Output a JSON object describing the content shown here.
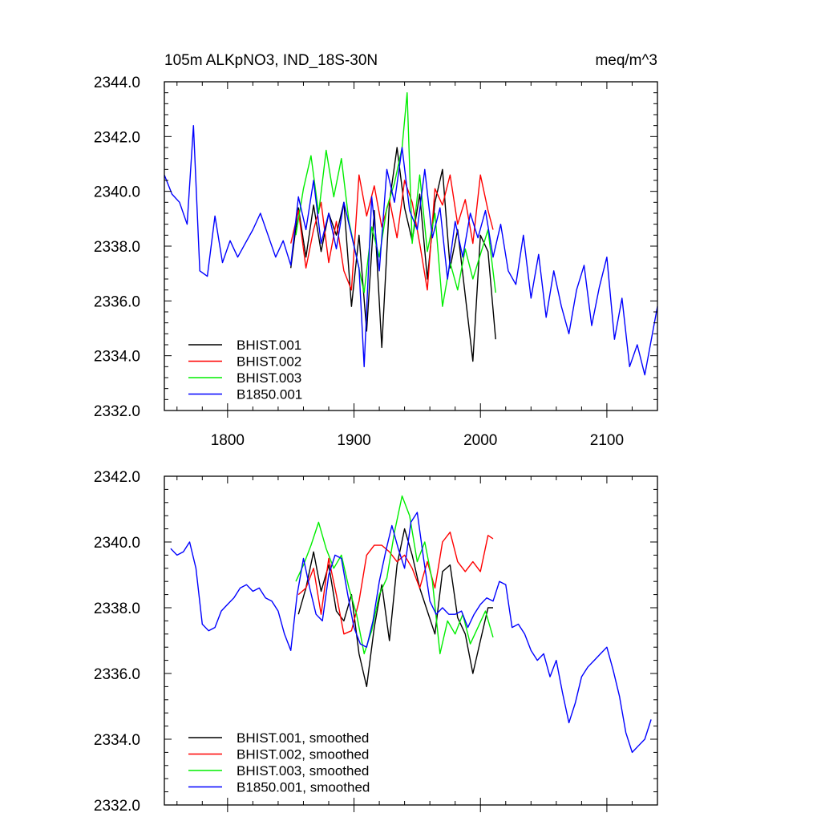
{
  "chart_data": [
    {
      "type": "line",
      "title": "105m ALKpNO3, IND_18S-30N",
      "units": "meq/m^3",
      "xlim": [
        1750,
        2140
      ],
      "ylim": [
        2332,
        2344
      ],
      "x_ticks": [
        1800,
        1900,
        2000,
        2100
      ],
      "x_tick_labels": [
        "1800",
        "1900",
        "2000",
        "2100"
      ],
      "y_ticks": [
        2332,
        2334,
        2336,
        2338,
        2340,
        2342,
        2344
      ],
      "y_tick_labels": [
        "2332.0",
        "2334.0",
        "2336.0",
        "2338.0",
        "2340.0",
        "2342.0",
        "2344.0"
      ],
      "legend_position": "bottom-left",
      "series": [
        {
          "name": "BHIST.001",
          "color": "#000000",
          "x": [
            1850,
            1856,
            1862,
            1868,
            1874,
            1880,
            1886,
            1892,
            1898,
            1904,
            1910,
            1916,
            1922,
            1928,
            1934,
            1940,
            1946,
            1952,
            1958,
            1964,
            1970,
            1976,
            1982,
            1988,
            1994,
            2000,
            2006,
            2012
          ],
          "y": [
            2337.2,
            2339.4,
            2337.6,
            2339.5,
            2337.8,
            2339.2,
            2338.4,
            2339.6,
            2335.8,
            2338.4,
            2334.9,
            2339.3,
            2334.3,
            2339.6,
            2341.6,
            2339.4,
            2338.2,
            2339.9,
            2336.8,
            2339.6,
            2340.8,
            2337.2,
            2338.6,
            2336.2,
            2333.8,
            2338.4,
            2337.8,
            2334.6
          ]
        },
        {
          "name": "BHIST.002",
          "color": "#ff0000",
          "x": [
            1850,
            1856,
            1862,
            1868,
            1874,
            1880,
            1886,
            1892,
            1898,
            1904,
            1910,
            1916,
            1922,
            1928,
            1934,
            1940,
            1946,
            1952,
            1958,
            1964,
            1970,
            1976,
            1982,
            1988,
            1994,
            2000,
            2006,
            2010
          ],
          "y": [
            2338.1,
            2339.3,
            2337.2,
            2338.6,
            2339.6,
            2337.4,
            2338.9,
            2337.1,
            2336.4,
            2340.6,
            2339.1,
            2340.2,
            2338.7,
            2339.7,
            2338.3,
            2340.4,
            2339.6,
            2338.1,
            2336.4,
            2340.1,
            2339.5,
            2340.6,
            2338.8,
            2339.7,
            2338.1,
            2340.6,
            2339.3,
            2338.6
          ]
        },
        {
          "name": "BHIST.003",
          "color": "#00ee00",
          "x": [
            1854,
            1860,
            1866,
            1872,
            1878,
            1884,
            1890,
            1896,
            1902,
            1908,
            1914,
            1920,
            1926,
            1932,
            1938,
            1942,
            1946,
            1952,
            1958,
            1964,
            1970,
            1976,
            1982,
            1988,
            1994,
            2000,
            2006,
            2012
          ],
          "y": [
            2338.4,
            2340.1,
            2341.3,
            2339.2,
            2341.5,
            2339.8,
            2341.2,
            2338.9,
            2337.6,
            2336.3,
            2338.7,
            2337.6,
            2339.4,
            2340.3,
            2341.6,
            2343.6,
            2338.1,
            2340.6,
            2337.8,
            2339.2,
            2335.8,
            2337.4,
            2336.4,
            2337.9,
            2336.8,
            2337.7,
            2338.6,
            2336.3
          ]
        },
        {
          "name": "B1850.001",
          "color": "#0000ff",
          "x": [
            1750,
            1756,
            1762,
            1768,
            1773,
            1778,
            1784,
            1790,
            1796,
            1802,
            1808,
            1814,
            1820,
            1826,
            1832,
            1838,
            1844,
            1850,
            1856,
            1862,
            1868,
            1874,
            1880,
            1886,
            1892,
            1898,
            1904,
            1908,
            1914,
            1920,
            1926,
            1932,
            1938,
            1944,
            1950,
            1956,
            1962,
            1968,
            1974,
            1980,
            1986,
            1992,
            1998,
            2004,
            2010,
            2016,
            2022,
            2028,
            2034,
            2040,
            2046,
            2052,
            2058,
            2064,
            2070,
            2076,
            2082,
            2088,
            2094,
            2100,
            2106,
            2112,
            2118,
            2124,
            2130,
            2136,
            2140
          ],
          "y": [
            2340.6,
            2339.9,
            2339.6,
            2338.8,
            2342.4,
            2337.1,
            2336.9,
            2339.1,
            2337.4,
            2338.2,
            2337.6,
            2338.1,
            2338.6,
            2339.2,
            2338.4,
            2337.6,
            2338.2,
            2337.3,
            2339.8,
            2338.6,
            2340.4,
            2338.1,
            2339.2,
            2337.9,
            2339.6,
            2338.4,
            2337.2,
            2333.6,
            2339.8,
            2337.1,
            2340.8,
            2339.6,
            2341.6,
            2339.3,
            2338.6,
            2340.8,
            2338.3,
            2339.4,
            2336.8,
            2338.9,
            2337.6,
            2339.2,
            2338.3,
            2339.3,
            2337.6,
            2338.8,
            2337.1,
            2336.6,
            2338.4,
            2336.1,
            2337.7,
            2335.4,
            2337.1,
            2335.8,
            2334.8,
            2336.4,
            2337.3,
            2335.1,
            2336.5,
            2337.6,
            2334.6,
            2336.1,
            2333.6,
            2334.4,
            2333.3,
            2334.8,
            2335.8
          ]
        }
      ]
    },
    {
      "type": "line",
      "xlim": [
        1750,
        2140
      ],
      "ylim": [
        2332,
        2342
      ],
      "x_ticks": [
        1800,
        1900,
        2000,
        2100
      ],
      "y_ticks": [
        2332,
        2334,
        2336,
        2338,
        2340,
        2342
      ],
      "y_tick_labels": [
        "2332.0",
        "2334.0",
        "2336.0",
        "2338.0",
        "2340.0",
        "2342.0"
      ],
      "legend_position": "bottom-left",
      "series": [
        {
          "name": "BHIST.001, smoothed",
          "color": "#000000",
          "x": [
            1856,
            1862,
            1868,
            1874,
            1880,
            1886,
            1892,
            1898,
            1904,
            1910,
            1916,
            1922,
            1928,
            1934,
            1940,
            1946,
            1952,
            1958,
            1964,
            1970,
            1976,
            1982,
            1988,
            1994,
            2000,
            2006,
            2010
          ],
          "y": [
            2337.8,
            2338.6,
            2339.7,
            2338.5,
            2339.3,
            2337.9,
            2337.6,
            2338.4,
            2336.6,
            2335.6,
            2337.4,
            2338.7,
            2337.0,
            2339.3,
            2340.4,
            2339.6,
            2338.6,
            2337.9,
            2337.2,
            2339.1,
            2339.3,
            2337.7,
            2337.2,
            2336.0,
            2337.0,
            2338.0,
            2338.0
          ]
        },
        {
          "name": "BHIST.002, smoothed",
          "color": "#ff0000",
          "x": [
            1856,
            1862,
            1868,
            1874,
            1880,
            1886,
            1892,
            1898,
            1904,
            1910,
            1916,
            1922,
            1928,
            1934,
            1940,
            1946,
            1952,
            1958,
            1964,
            1970,
            1976,
            1982,
            1988,
            1994,
            2000,
            2006,
            2010
          ],
          "y": [
            2338.4,
            2338.6,
            2339.2,
            2337.8,
            2339.5,
            2338.4,
            2337.2,
            2337.3,
            2338.2,
            2339.6,
            2339.9,
            2339.9,
            2339.7,
            2339.4,
            2339.6,
            2339.2,
            2338.6,
            2339.4,
            2338.6,
            2340.0,
            2340.3,
            2339.4,
            2339.1,
            2339.4,
            2339.1,
            2340.2,
            2340.1
          ]
        },
        {
          "name": "BHIST.003, smoothed",
          "color": "#00ee00",
          "x": [
            1854,
            1860,
            1866,
            1872,
            1878,
            1884,
            1890,
            1896,
            1902,
            1908,
            1914,
            1920,
            1926,
            1932,
            1938,
            1944,
            1950,
            1956,
            1962,
            1968,
            1974,
            1980,
            1986,
            1992,
            1998,
            2004,
            2010
          ],
          "y": [
            2338.8,
            2339.3,
            2339.9,
            2340.6,
            2339.8,
            2339.2,
            2339.6,
            2338.6,
            2337.8,
            2336.6,
            2337.3,
            2338.4,
            2338.9,
            2340.3,
            2341.4,
            2340.8,
            2339.4,
            2340.0,
            2338.8,
            2336.6,
            2337.6,
            2337.2,
            2337.8,
            2336.9,
            2337.4,
            2337.9,
            2337.1
          ]
        },
        {
          "name": "B1850.001, smoothed",
          "color": "#0000ff",
          "x": [
            1755,
            1760,
            1765,
            1770,
            1775,
            1780,
            1785,
            1790,
            1795,
            1800,
            1805,
            1810,
            1815,
            1820,
            1825,
            1830,
            1835,
            1840,
            1845,
            1850,
            1855,
            1860,
            1865,
            1870,
            1875,
            1880,
            1885,
            1890,
            1895,
            1900,
            1905,
            1910,
            1915,
            1920,
            1925,
            1930,
            1935,
            1940,
            1945,
            1950,
            1955,
            1960,
            1965,
            1970,
            1975,
            1980,
            1985,
            1990,
            1995,
            2000,
            2005,
            2010,
            2015,
            2020,
            2025,
            2030,
            2035,
            2040,
            2045,
            2050,
            2055,
            2060,
            2065,
            2070,
            2075,
            2080,
            2085,
            2090,
            2095,
            2100,
            2105,
            2110,
            2115,
            2120,
            2125,
            2130,
            2135
          ],
          "y": [
            2339.8,
            2339.6,
            2339.7,
            2340.0,
            2339.2,
            2337.5,
            2337.3,
            2337.4,
            2337.9,
            2338.1,
            2338.3,
            2338.6,
            2338.7,
            2338.5,
            2338.6,
            2338.3,
            2338.2,
            2337.9,
            2337.2,
            2336.7,
            2338.4,
            2339.5,
            2338.6,
            2337.8,
            2337.6,
            2339.0,
            2339.6,
            2339.5,
            2338.4,
            2337.4,
            2336.9,
            2336.8,
            2337.6,
            2338.8,
            2339.7,
            2340.5,
            2339.8,
            2339.2,
            2340.6,
            2340.9,
            2339.5,
            2338.2,
            2337.8,
            2338.0,
            2337.8,
            2337.8,
            2337.9,
            2337.4,
            2337.8,
            2338.1,
            2338.3,
            2338.2,
            2338.8,
            2338.7,
            2337.4,
            2337.5,
            2337.2,
            2336.7,
            2336.4,
            2336.6,
            2335.9,
            2336.4,
            2335.4,
            2334.5,
            2335.1,
            2335.9,
            2336.2,
            2336.4,
            2336.6,
            2336.8,
            2336.1,
            2335.3,
            2334.2,
            2333.6,
            2333.8,
            2334.0,
            2334.6
          ]
        }
      ]
    }
  ]
}
